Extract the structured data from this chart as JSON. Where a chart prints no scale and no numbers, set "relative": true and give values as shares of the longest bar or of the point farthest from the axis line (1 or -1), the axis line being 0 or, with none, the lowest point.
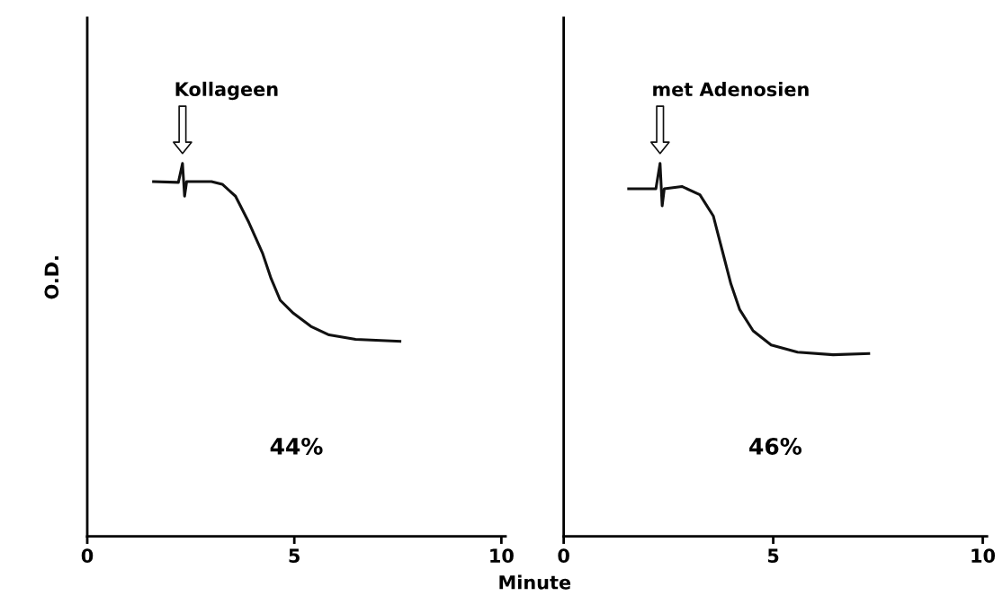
{
  "chart_data": [
    {
      "type": "line",
      "relative": true,
      "ylabel": "O.D.",
      "xlabel": "Minute",
      "xlim": [
        0,
        10.1
      ],
      "xticks": [
        0,
        5,
        10
      ],
      "tick_labels": "x",
      "grid": false,
      "legend": false,
      "marker": "none",
      "line_style": "solid",
      "annotations": [
        "Kollageen",
        "44%"
      ],
      "series": [
        {
          "color": "#111111",
          "x": [
            1.6,
            2.2,
            2.3,
            2.35,
            2.4,
            2.5,
            3.0,
            3.26,
            3.58,
            3.9,
            4.23,
            4.44,
            4.66,
            4.98,
            5.4,
            5.84,
            6.48,
            7.55
          ],
          "values": [
            0.951,
            0.949,
            1.0,
            0.912,
            0.951,
            0.951,
            0.951,
            0.944,
            0.912,
            0.842,
            0.76,
            0.691,
            0.633,
            0.598,
            0.563,
            0.54,
            0.528,
            0.523
          ]
        }
      ]
    },
    {
      "type": "line",
      "relative": true,
      "xlim": [
        0,
        10.1
      ],
      "xticks": [
        0,
        5,
        10
      ],
      "tick_labels": "x",
      "grid": false,
      "legend": false,
      "marker": "none",
      "line_style": "solid",
      "annotations": [
        "met Adenosien",
        "46%"
      ],
      "series": [
        {
          "color": "#111111",
          "x": [
            1.55,
            2.2,
            2.3,
            2.35,
            2.4,
            2.82,
            3.25,
            3.57,
            3.78,
            3.99,
            4.2,
            4.52,
            4.95,
            5.58,
            6.43,
            7.28
          ],
          "values": [
            0.932,
            0.932,
            1.0,
            0.886,
            0.932,
            0.938,
            0.916,
            0.859,
            0.768,
            0.677,
            0.608,
            0.551,
            0.513,
            0.494,
            0.487,
            0.49
          ]
        }
      ]
    }
  ]
}
